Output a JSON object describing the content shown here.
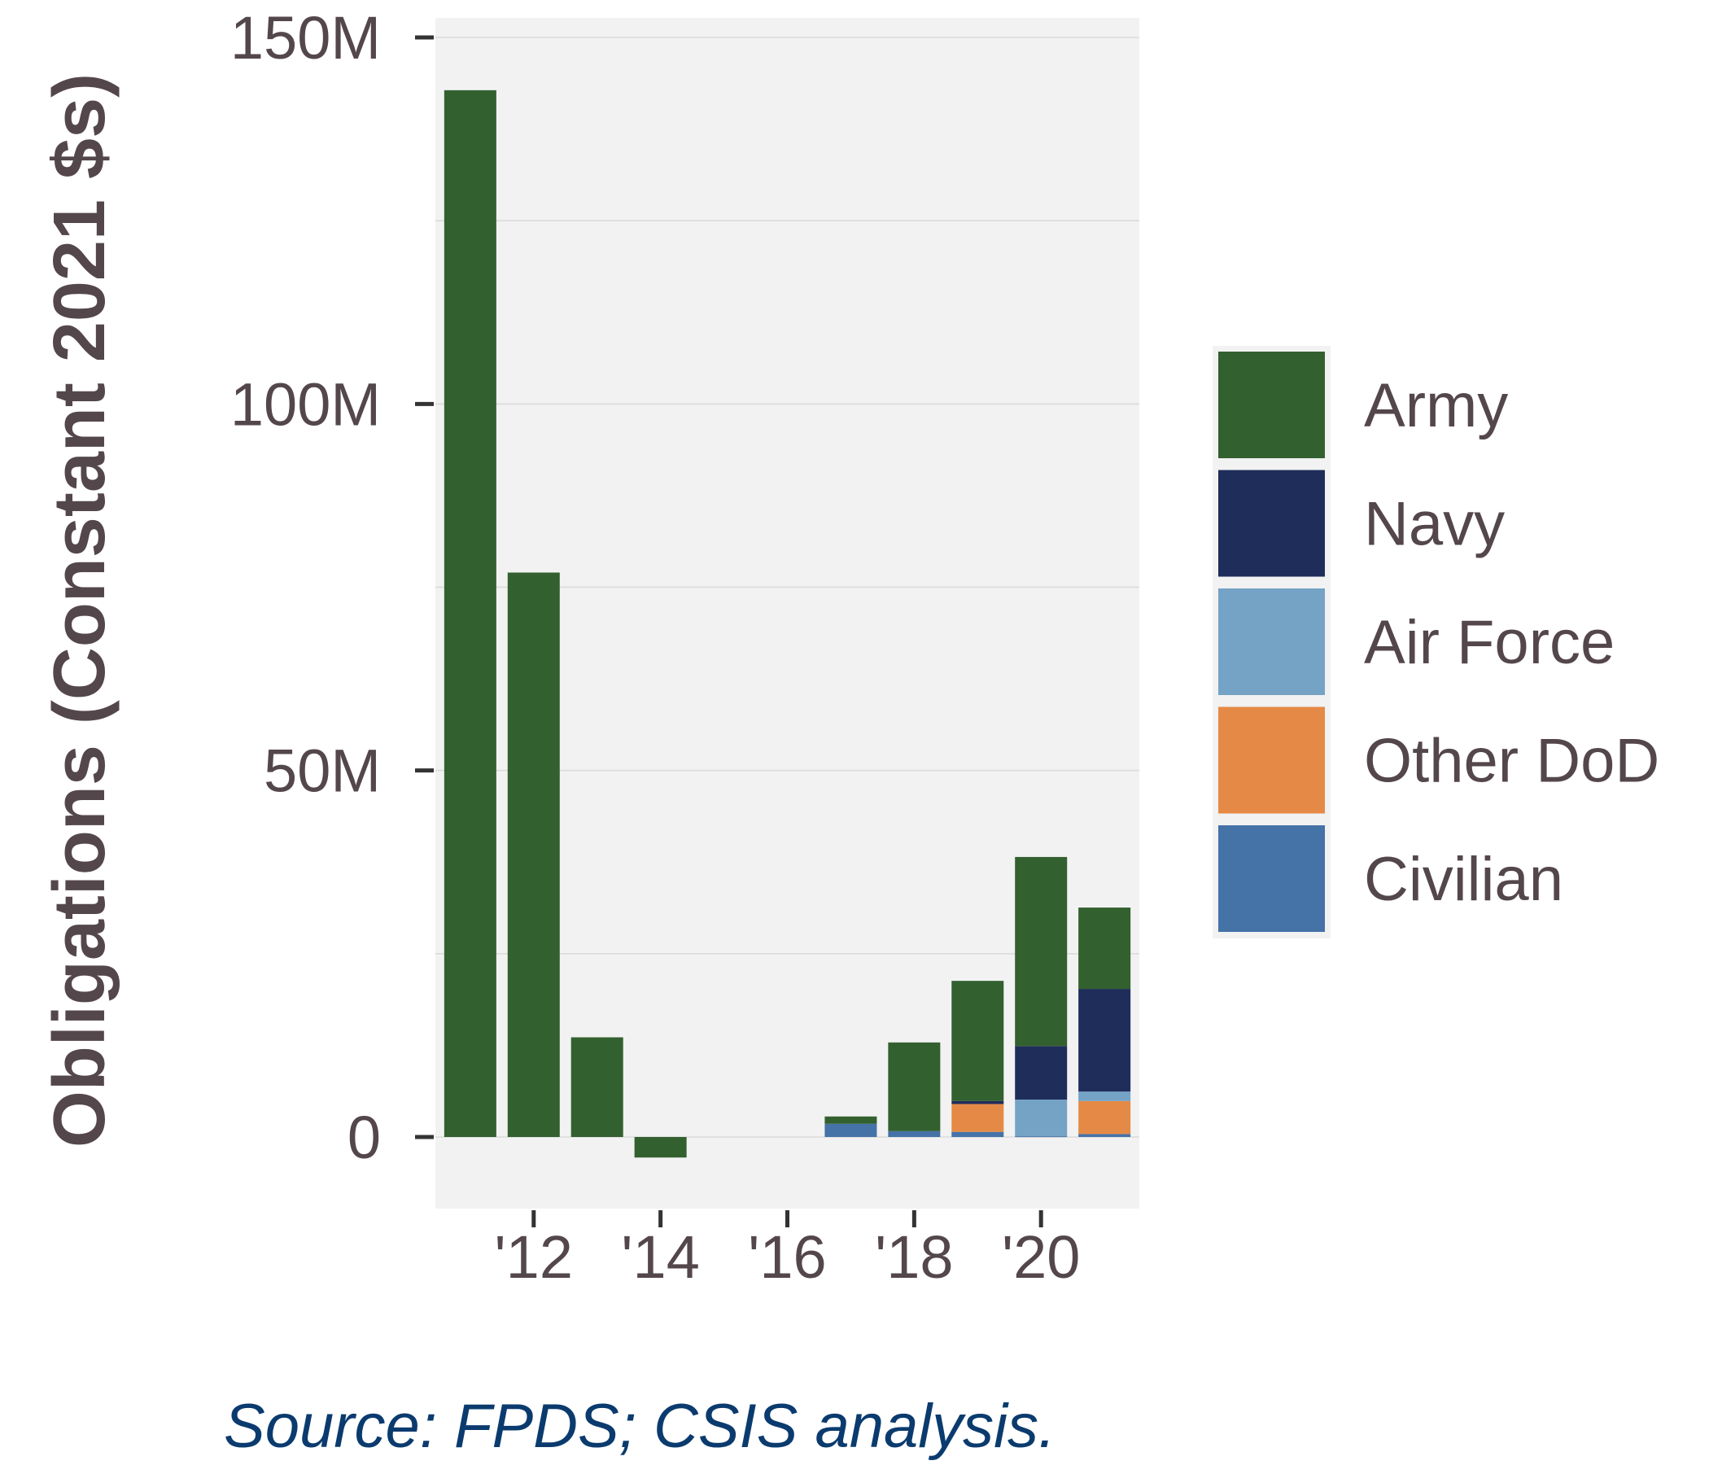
{
  "chart_data": {
    "type": "bar",
    "stacked": true,
    "ylabel": "Obligations (Constant 2021 $s)",
    "xlabel": "",
    "ylim": [
      -10,
      150
    ],
    "y_ticks": [
      0,
      50,
      100,
      150
    ],
    "y_tick_labels": [
      "0",
      "50M",
      "100M",
      "150M"
    ],
    "x_ticks": [
      2012,
      2014,
      2016,
      2018,
      2020
    ],
    "x_tick_labels": [
      "'12",
      "'14",
      "'16",
      "'18",
      "'20"
    ],
    "xlim": [
      2010.45,
      2021.55
    ],
    "x": [
      2011,
      2012,
      2013,
      2014,
      2015,
      2016,
      2017,
      2018,
      2019,
      2020,
      2021
    ],
    "units": "millions of constant 2021 dollars",
    "grid": true,
    "legend_position": "right",
    "series": [
      {
        "name": "Civilian",
        "color": "#4572a7",
        "values": [
          0,
          0,
          0,
          0,
          0,
          0,
          1.8,
          0.8,
          0.7,
          0.1,
          0.4
        ]
      },
      {
        "name": "Other DoD",
        "color": "#e58a46",
        "values": [
          0,
          0,
          0,
          0,
          0,
          0,
          0,
          0,
          3.8,
          0,
          4.5
        ]
      },
      {
        "name": "Air Force",
        "color": "#74a3c6",
        "values": [
          0,
          0,
          0,
          0,
          0,
          0,
          0,
          0,
          0,
          5.0,
          1.3
        ]
      },
      {
        "name": "Navy",
        "color": "#1f2d5a",
        "values": [
          0,
          0,
          0,
          0,
          0,
          0,
          0,
          0,
          0.4,
          7.3,
          14.0
        ]
      },
      {
        "name": "Army",
        "color": "#33602f",
        "values": [
          142.8,
          77.0,
          13.6,
          -2.8,
          0,
          0,
          1.0,
          12.1,
          16.4,
          25.8,
          11.1
        ]
      }
    ],
    "legend_order": [
      "Army",
      "Navy",
      "Air Force",
      "Other DoD",
      "Civilian"
    ]
  },
  "source_note": "Source: FPDS; CSIS analysis."
}
